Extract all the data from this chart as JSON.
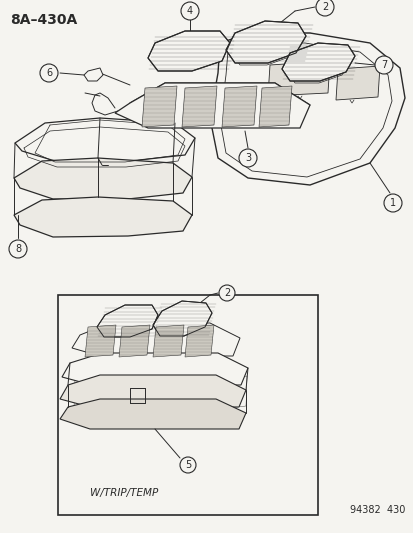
{
  "title": "8A–430A",
  "bg_color": "#f5f4f0",
  "line_color": "#2a2a2a",
  "footer_left": "W/TRIP/TEMP",
  "footer_right": "94382  430",
  "title_fontsize": 10,
  "label_fontsize": 7.5,
  "footer_fontsize": 7
}
